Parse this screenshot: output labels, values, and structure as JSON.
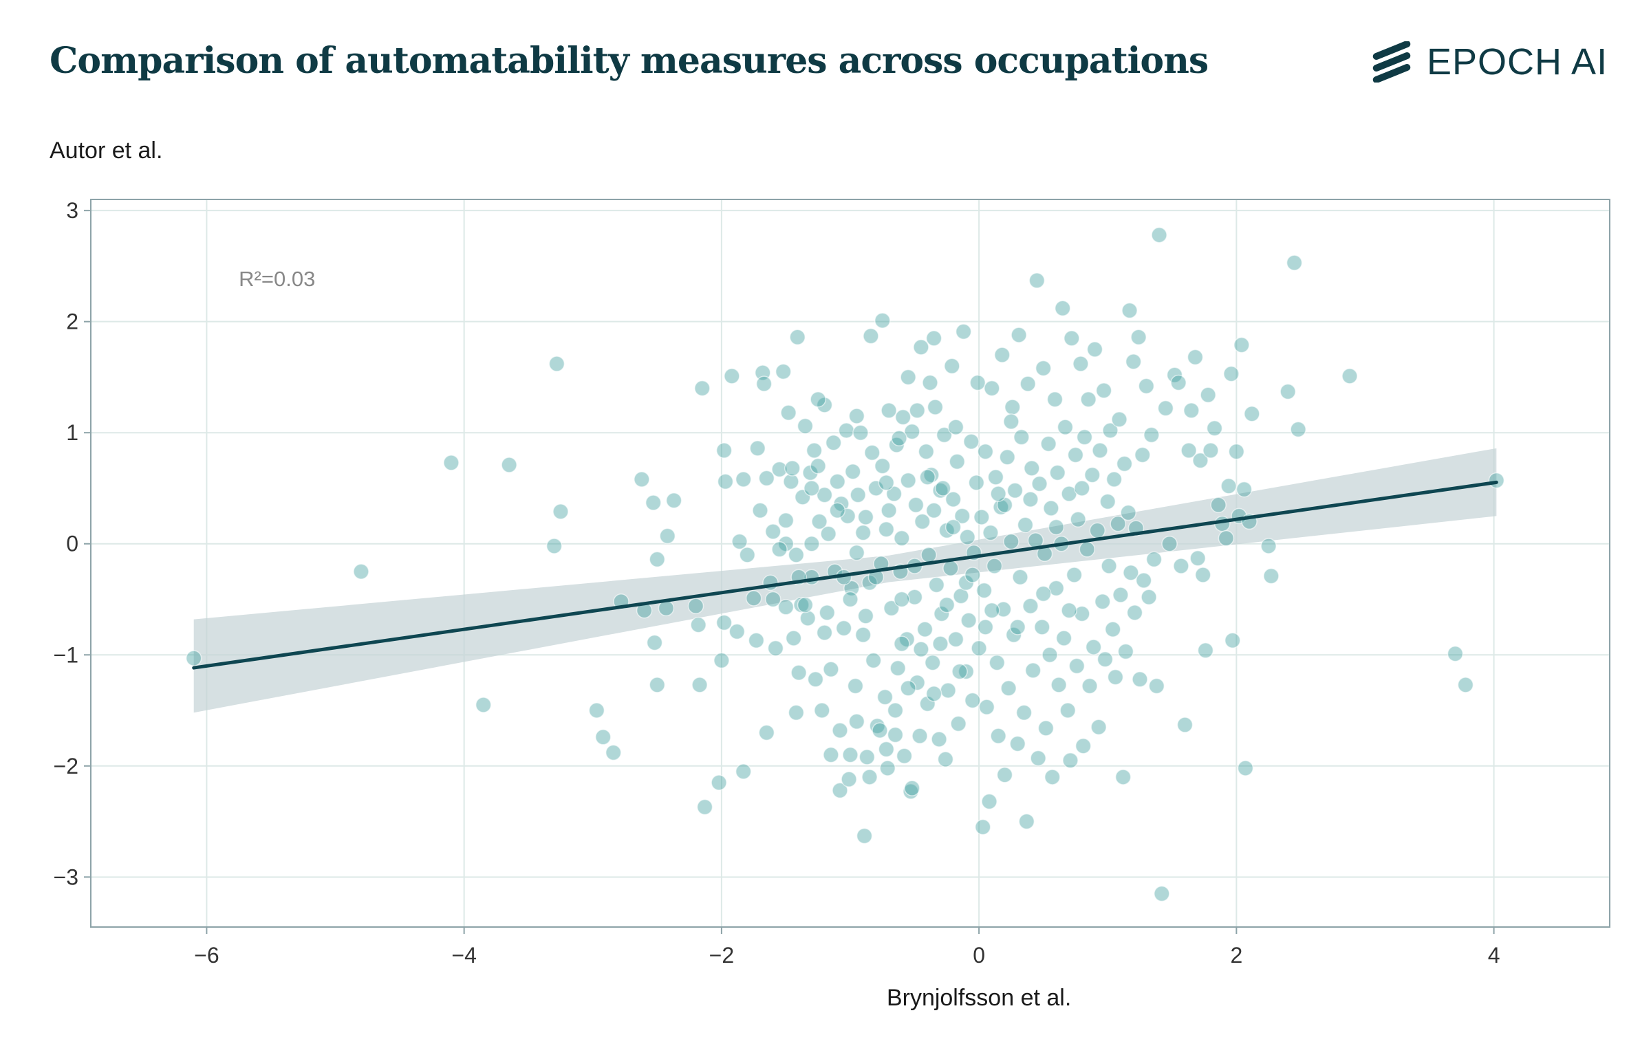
{
  "header": {
    "title": "Comparison of automatability measures across occupations",
    "logo_text": "EPOCH AI"
  },
  "colors": {
    "title": "#0f3a44",
    "point": "#3a9a9a",
    "regression_line": "#0e4651",
    "ci_band": "#c4d3d6",
    "grid": "#dde9e7",
    "axis": "#8da3a8"
  },
  "chart_data": {
    "type": "scatter",
    "xlabel": "Brynjolfsson et al.",
    "ylabel": "Autor et al.",
    "xlim": [
      -6.9,
      4.9
    ],
    "ylim": [
      -3.45,
      3.1
    ],
    "xticks": [
      -6,
      -4,
      -2,
      0,
      2,
      4
    ],
    "xtick_labels": [
      "−6",
      "−4",
      "−2",
      "0",
      "2",
      "4"
    ],
    "yticks": [
      -3,
      -2,
      -1,
      0,
      1,
      2,
      3
    ],
    "ytick_labels": [
      "−3",
      "−2",
      "−1",
      "0",
      "1",
      "2",
      "3"
    ],
    "grid": true,
    "annotation": "R²=0.03",
    "regression": {
      "x_range": [
        -6.1,
        4.02
      ],
      "slope": 0.165,
      "intercept": -0.11,
      "ci_at_ends": [
        [
          -1.52,
          -0.68
        ],
        [
          0.25,
          0.86
        ]
      ]
    },
    "points": [
      [
        -6.1,
        -1.03
      ],
      [
        -4.8,
        -0.25
      ],
      [
        -4.1,
        0.73
      ],
      [
        -3.85,
        -1.45
      ],
      [
        -3.65,
        0.71
      ],
      [
        -3.28,
        1.62
      ],
      [
        -3.25,
        0.29
      ],
      [
        -3.3,
        -0.02
      ],
      [
        -2.97,
        -1.5
      ],
      [
        -2.92,
        -1.74
      ],
      [
        -2.84,
        -1.88
      ],
      [
        -2.78,
        -0.52
      ],
      [
        -2.62,
        0.58
      ],
      [
        -2.6,
        -0.6
      ],
      [
        -2.53,
        0.37
      ],
      [
        -2.5,
        -0.14
      ],
      [
        -2.52,
        -0.89
      ],
      [
        -2.5,
        -1.27
      ],
      [
        -2.42,
        0.07
      ],
      [
        -2.43,
        -0.58
      ],
      [
        -2.37,
        0.39
      ],
      [
        -2.2,
        -0.56
      ],
      [
        -2.18,
        -0.73
      ],
      [
        -2.17,
        -1.27
      ],
      [
        -2.15,
        1.4
      ],
      [
        -2.13,
        -2.37
      ],
      [
        -2.02,
        -2.15
      ],
      [
        -1.98,
        0.84
      ],
      [
        -1.97,
        0.56
      ],
      [
        -2.0,
        -1.05
      ],
      [
        -1.98,
        -0.71
      ],
      [
        -1.92,
        1.51
      ],
      [
        -1.88,
        -0.79
      ],
      [
        -1.86,
        0.02
      ],
      [
        -1.83,
        -2.05
      ],
      [
        -1.83,
        0.58
      ],
      [
        -1.8,
        -0.1
      ],
      [
        -1.75,
        -0.49
      ],
      [
        -1.73,
        -0.87
      ],
      [
        -1.72,
        0.86
      ],
      [
        -1.68,
        1.54
      ],
      [
        -1.67,
        1.44
      ],
      [
        -1.65,
        -1.7
      ],
      [
        -1.65,
        0.59
      ],
      [
        -1.62,
        -0.35
      ],
      [
        -1.6,
        0.11
      ],
      [
        -1.58,
        -0.94
      ],
      [
        -1.55,
        0.67
      ],
      [
        -1.52,
        1.55
      ],
      [
        -1.5,
        -0.57
      ],
      [
        -1.5,
        0.21
      ],
      [
        -1.48,
        1.18
      ],
      [
        -1.46,
        0.56
      ],
      [
        -1.45,
        0.68
      ],
      [
        -1.44,
        -0.85
      ],
      [
        -1.42,
        -0.1
      ],
      [
        -1.42,
        -1.52
      ],
      [
        -1.41,
        1.86
      ],
      [
        -1.4,
        -1.16
      ],
      [
        -1.38,
        -0.55
      ],
      [
        -1.37,
        0.42
      ],
      [
        -1.35,
        1.06
      ],
      [
        -1.33,
        -0.67
      ],
      [
        -1.31,
        0.64
      ],
      [
        -1.3,
        -0.3
      ],
      [
        -1.3,
        0.0
      ],
      [
        -1.28,
        0.84
      ],
      [
        -1.27,
        -1.22
      ],
      [
        -1.24,
        0.2
      ],
      [
        -1.22,
        -1.5
      ],
      [
        -1.2,
        1.25
      ],
      [
        -1.2,
        0.44
      ],
      [
        -1.18,
        -0.62
      ],
      [
        -1.17,
        0.09
      ],
      [
        -1.15,
        -1.13
      ],
      [
        -1.13,
        0.91
      ],
      [
        -1.12,
        -0.25
      ],
      [
        -1.1,
        0.56
      ],
      [
        -1.08,
        -2.22
      ],
      [
        -1.08,
        -1.68
      ],
      [
        -1.07,
        0.36
      ],
      [
        -1.05,
        -0.76
      ],
      [
        -1.03,
        1.02
      ],
      [
        -1.02,
        0.25
      ],
      [
        -1.01,
        -2.12
      ],
      [
        -1.0,
        -1.9
      ],
      [
        -0.99,
        -0.4
      ],
      [
        -0.98,
        0.65
      ],
      [
        -0.96,
        -1.28
      ],
      [
        -0.95,
        -0.08
      ],
      [
        -0.94,
        0.44
      ],
      [
        -0.92,
        1.0
      ],
      [
        -0.9,
        -0.82
      ],
      [
        -0.89,
        -2.63
      ],
      [
        -0.88,
        0.24
      ],
      [
        -0.87,
        -1.92
      ],
      [
        -0.85,
        -0.35
      ],
      [
        -0.84,
        1.87
      ],
      [
        -0.83,
        0.82
      ],
      [
        -0.82,
        -1.05
      ],
      [
        -0.8,
        0.5
      ],
      [
        -0.79,
        -1.64
      ],
      [
        -0.77,
        -1.68
      ],
      [
        -0.76,
        -0.18
      ],
      [
        -0.75,
        2.01
      ],
      [
        -0.73,
        -1.38
      ],
      [
        -0.72,
        0.13
      ],
      [
        -0.71,
        -2.02
      ],
      [
        -0.7,
        1.2
      ],
      [
        -0.68,
        -0.58
      ],
      [
        -0.66,
        0.45
      ],
      [
        -0.65,
        -1.72
      ],
      [
        -0.64,
        0.89
      ],
      [
        -0.63,
        -1.12
      ],
      [
        -0.61,
        -0.25
      ],
      [
        -0.6,
        0.05
      ],
      [
        -0.59,
        1.14
      ],
      [
        -0.58,
        -1.91
      ],
      [
        -0.56,
        -0.86
      ],
      [
        -0.55,
        0.57
      ],
      [
        -0.53,
        -2.23
      ],
      [
        -0.52,
        -2.2
      ],
      [
        -0.52,
        1.01
      ],
      [
        -0.5,
        -0.48
      ],
      [
        -0.49,
        0.35
      ],
      [
        -0.48,
        -1.25
      ],
      [
        -0.46,
        -1.73
      ],
      [
        -0.45,
        1.77
      ],
      [
        -0.44,
        0.2
      ],
      [
        -0.42,
        -0.77
      ],
      [
        -0.41,
        0.83
      ],
      [
        -0.4,
        -1.44
      ],
      [
        -0.39,
        -0.1
      ],
      [
        -0.37,
        0.62
      ],
      [
        -0.36,
        -1.07
      ],
      [
        -0.35,
        0.3
      ],
      [
        -0.34,
        1.23
      ],
      [
        -0.33,
        -0.37
      ],
      [
        -0.31,
        -1.76
      ],
      [
        -0.3,
        0.48
      ],
      [
        -0.29,
        -0.63
      ],
      [
        -0.27,
        0.98
      ],
      [
        -0.26,
        -1.94
      ],
      [
        -0.25,
        0.12
      ],
      [
        -0.24,
        -1.32
      ],
      [
        -0.22,
        -0.22
      ],
      [
        -0.21,
        1.6
      ],
      [
        -0.2,
        0.4
      ],
      [
        -0.18,
        -0.86
      ],
      [
        -0.17,
        0.74
      ],
      [
        -0.16,
        -1.62
      ],
      [
        -0.14,
        -0.47
      ],
      [
        -0.13,
        0.25
      ],
      [
        -0.12,
        1.91
      ],
      [
        -0.1,
        -1.15
      ],
      [
        -0.09,
        0.06
      ],
      [
        -0.08,
        -0.69
      ],
      [
        -0.06,
        0.92
      ],
      [
        -0.05,
        -1.41
      ],
      [
        -0.04,
        -0.08
      ],
      [
        -0.02,
        0.55
      ],
      [
        -0.01,
        1.45
      ],
      [
        0.0,
        -0.94
      ],
      [
        0.02,
        0.24
      ],
      [
        0.03,
        -2.55
      ],
      [
        0.04,
        -0.42
      ],
      [
        0.05,
        0.83
      ],
      [
        0.06,
        -1.47
      ],
      [
        0.08,
        -2.32
      ],
      [
        0.09,
        0.1
      ],
      [
        0.1,
        1.4
      ],
      [
        0.12,
        -0.2
      ],
      [
        0.13,
        0.6
      ],
      [
        0.14,
        -1.07
      ],
      [
        0.15,
        -1.73
      ],
      [
        0.17,
        0.33
      ],
      [
        0.18,
        1.7
      ],
      [
        0.19,
        -0.59
      ],
      [
        0.2,
        -2.08
      ],
      [
        0.22,
        0.78
      ],
      [
        0.23,
        -1.3
      ],
      [
        0.25,
        0.02
      ],
      [
        0.26,
        1.23
      ],
      [
        0.27,
        -0.82
      ],
      [
        0.28,
        0.48
      ],
      [
        0.3,
        -1.8
      ],
      [
        0.31,
        1.88
      ],
      [
        0.32,
        -0.3
      ],
      [
        0.33,
        0.96
      ],
      [
        0.35,
        -1.52
      ],
      [
        0.36,
        0.17
      ],
      [
        0.37,
        -2.5
      ],
      [
        0.38,
        1.44
      ],
      [
        0.4,
        -0.56
      ],
      [
        0.41,
        0.68
      ],
      [
        0.42,
        -1.14
      ],
      [
        0.44,
        0.03
      ],
      [
        0.45,
        2.37
      ],
      [
        0.46,
        -1.93
      ],
      [
        0.47,
        0.54
      ],
      [
        0.49,
        -0.75
      ],
      [
        0.5,
        1.58
      ],
      [
        0.51,
        -0.09
      ],
      [
        0.52,
        -1.66
      ],
      [
        0.54,
        0.9
      ],
      [
        0.55,
        -1.0
      ],
      [
        0.56,
        0.32
      ],
      [
        0.57,
        -2.1
      ],
      [
        0.59,
        1.3
      ],
      [
        0.6,
        -0.4
      ],
      [
        0.61,
        0.64
      ],
      [
        0.62,
        -1.27
      ],
      [
        0.64,
        0.0
      ],
      [
        0.65,
        2.12
      ],
      [
        0.66,
        -0.85
      ],
      [
        0.67,
        1.05
      ],
      [
        0.69,
        -1.5
      ],
      [
        0.7,
        0.45
      ],
      [
        0.71,
        -1.95
      ],
      [
        0.72,
        1.85
      ],
      [
        0.74,
        -0.28
      ],
      [
        0.75,
        0.8
      ],
      [
        0.76,
        -1.1
      ],
      [
        0.77,
        0.22
      ],
      [
        0.79,
        1.62
      ],
      [
        0.8,
        -0.63
      ],
      [
        0.81,
        -1.82
      ],
      [
        0.82,
        0.96
      ],
      [
        0.84,
        -0.05
      ],
      [
        0.85,
        1.3
      ],
      [
        0.86,
        -1.28
      ],
      [
        0.88,
        0.62
      ],
      [
        0.89,
        -0.93
      ],
      [
        0.9,
        1.75
      ],
      [
        0.92,
        0.12
      ],
      [
        0.93,
        -1.65
      ],
      [
        0.94,
        0.84
      ],
      [
        0.96,
        -0.52
      ],
      [
        0.97,
        1.38
      ],
      [
        0.98,
        -1.04
      ],
      [
        1.0,
        0.38
      ],
      [
        1.01,
        -0.2
      ],
      [
        1.02,
        1.02
      ],
      [
        1.04,
        -0.77
      ],
      [
        1.05,
        0.58
      ],
      [
        1.06,
        -1.2
      ],
      [
        1.08,
        0.18
      ],
      [
        1.09,
        1.12
      ],
      [
        1.1,
        -0.46
      ],
      [
        1.12,
        -2.1
      ],
      [
        1.13,
        0.72
      ],
      [
        1.14,
        -0.97
      ],
      [
        1.16,
        0.28
      ],
      [
        1.17,
        2.1
      ],
      [
        1.18,
        -0.26
      ],
      [
        1.2,
        1.64
      ],
      [
        1.21,
        -0.62
      ],
      [
        1.22,
        0.14
      ],
      [
        1.24,
        1.86
      ],
      [
        1.25,
        -1.22
      ],
      [
        1.27,
        0.8
      ],
      [
        1.28,
        -0.33
      ],
      [
        1.3,
        1.42
      ],
      [
        1.32,
        -0.48
      ],
      [
        1.34,
        0.98
      ],
      [
        1.36,
        -0.14
      ],
      [
        1.38,
        -1.28
      ],
      [
        1.4,
        2.78
      ],
      [
        1.42,
        -3.15
      ],
      [
        1.45,
        1.22
      ],
      [
        1.48,
        0.0
      ],
      [
        1.52,
        1.52
      ],
      [
        1.55,
        1.45
      ],
      [
        1.57,
        -0.2
      ],
      [
        1.6,
        -1.63
      ],
      [
        1.63,
        0.84
      ],
      [
        1.65,
        1.2
      ],
      [
        1.68,
        1.68
      ],
      [
        1.7,
        -0.13
      ],
      [
        1.72,
        0.75
      ],
      [
        1.74,
        -0.28
      ],
      [
        1.76,
        -0.96
      ],
      [
        1.78,
        1.34
      ],
      [
        1.8,
        0.84
      ],
      [
        1.83,
        1.04
      ],
      [
        1.86,
        0.35
      ],
      [
        1.89,
        0.18
      ],
      [
        1.92,
        0.05
      ],
      [
        1.94,
        0.52
      ],
      [
        1.96,
        1.53
      ],
      [
        1.97,
        -0.87
      ],
      [
        2.0,
        0.83
      ],
      [
        2.02,
        0.25
      ],
      [
        2.04,
        1.79
      ],
      [
        2.06,
        0.49
      ],
      [
        2.07,
        -2.02
      ],
      [
        2.1,
        0.2
      ],
      [
        2.12,
        1.17
      ],
      [
        2.25,
        -0.02
      ],
      [
        2.27,
        -0.29
      ],
      [
        2.4,
        1.37
      ],
      [
        2.45,
        2.53
      ],
      [
        2.48,
        1.03
      ],
      [
        2.88,
        1.51
      ],
      [
        3.7,
        -0.99
      ],
      [
        3.78,
        -1.27
      ],
      [
        4.02,
        0.57
      ],
      [
        -0.7,
        0.3
      ],
      [
        -0.6,
        -0.5
      ],
      [
        -0.5,
        -0.2
      ],
      [
        -0.4,
        0.6
      ],
      [
        -0.3,
        -0.9
      ],
      [
        -0.2,
        0.15
      ],
      [
        -0.1,
        -0.35
      ],
      [
        0.1,
        -0.6
      ],
      [
        0.2,
        0.35
      ],
      [
        0.3,
        -0.75
      ],
      [
        0.4,
        0.4
      ],
      [
        0.5,
        -0.45
      ],
      [
        0.6,
        0.15
      ],
      [
        0.7,
        -0.6
      ],
      [
        0.8,
        0.5
      ],
      [
        -0.8,
        -0.3
      ],
      [
        -0.9,
        0.1
      ],
      [
        -1.0,
        -0.5
      ],
      [
        -1.1,
        0.3
      ],
      [
        -1.2,
        -0.8
      ],
      [
        -1.3,
        0.5
      ],
      [
        -1.4,
        -0.3
      ],
      [
        -1.5,
        0.0
      ],
      [
        -1.6,
        -0.5
      ],
      [
        -0.65,
        -1.5
      ],
      [
        -0.55,
        -1.3
      ],
      [
        -0.45,
        -0.95
      ],
      [
        -0.35,
        -1.35
      ],
      [
        -0.25,
        -0.55
      ],
      [
        -0.15,
        -1.15
      ],
      [
        -0.05,
        -0.28
      ],
      [
        0.05,
        -0.75
      ],
      [
        -0.75,
        0.7
      ],
      [
        -0.62,
        0.95
      ],
      [
        -0.48,
        1.2
      ],
      [
        -0.38,
        1.45
      ],
      [
        -0.28,
        0.5
      ],
      [
        -0.18,
        1.05
      ],
      [
        0.15,
        0.45
      ],
      [
        0.25,
        1.1
      ],
      [
        -1.15,
        -1.9
      ],
      [
        -0.95,
        -1.6
      ],
      [
        -0.85,
        -2.1
      ],
      [
        -0.72,
        -1.85
      ],
      [
        -1.25,
        1.3
      ],
      [
        -0.95,
        1.15
      ],
      [
        -0.55,
        1.5
      ],
      [
        -0.35,
        1.85
      ],
      [
        -1.7,
        0.3
      ],
      [
        -1.55,
        -0.05
      ],
      [
        -1.35,
        -0.55
      ],
      [
        -1.25,
        0.7
      ],
      [
        -1.05,
        -0.3
      ],
      [
        -0.88,
        -0.65
      ],
      [
        -0.72,
        0.55
      ],
      [
        -0.6,
        -0.9
      ]
    ]
  }
}
